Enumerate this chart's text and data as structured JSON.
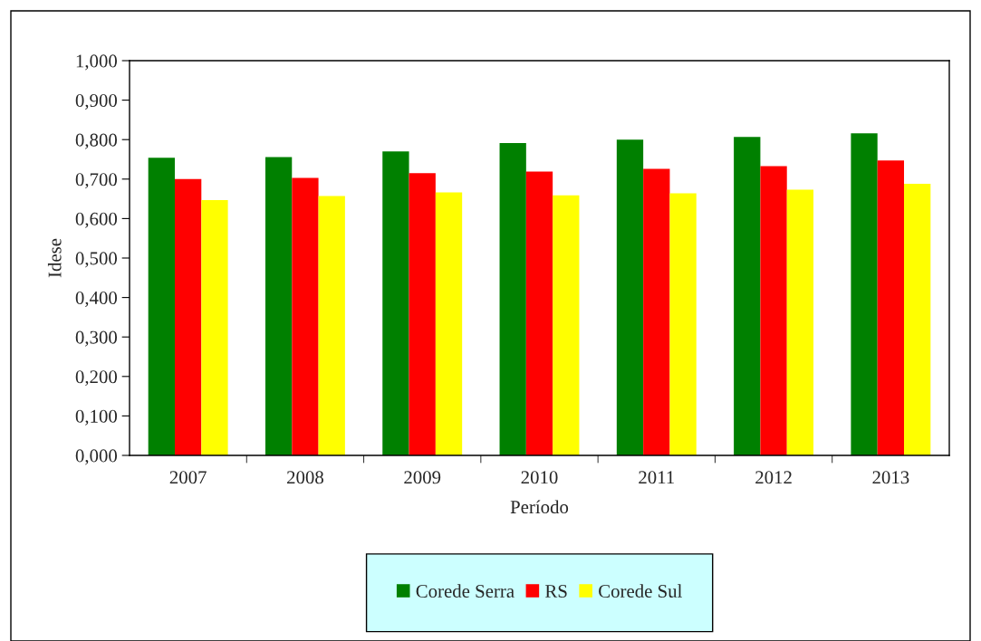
{
  "chart_data": {
    "type": "bar",
    "xlabel": "Período",
    "ylabel": "Idese",
    "categories": [
      "2007",
      "2008",
      "2009",
      "2010",
      "2011",
      "2012",
      "2013"
    ],
    "series": [
      {
        "name": "Corede Serra",
        "color": "#008000",
        "values": [
          0.754,
          0.756,
          0.77,
          0.791,
          0.8,
          0.807,
          0.816
        ]
      },
      {
        "name": "RS",
        "color": "#ff0000",
        "values": [
          0.7,
          0.703,
          0.715,
          0.719,
          0.726,
          0.733,
          0.747
        ]
      },
      {
        "name": "Corede Sul",
        "color": "#ffff00",
        "values": [
          0.647,
          0.657,
          0.666,
          0.659,
          0.664,
          0.673,
          0.688
        ]
      }
    ],
    "ylim": [
      0,
      1
    ],
    "yticks": [
      {
        "value": 0,
        "label": "0,000"
      },
      {
        "value": 0.1,
        "label": "0,100"
      },
      {
        "value": 0.2,
        "label": "0,200"
      },
      {
        "value": 0.3,
        "label": "0,300"
      },
      {
        "value": 0.4,
        "label": "0,400"
      },
      {
        "value": 0.5,
        "label": "0,500"
      },
      {
        "value": 0.6,
        "label": "0,600"
      },
      {
        "value": 0.7,
        "label": "0,700"
      },
      {
        "value": 0.8,
        "label": "0,800"
      },
      {
        "value": 0.9,
        "label": "0,900"
      },
      {
        "value": 1,
        "label": "1,000"
      }
    ],
    "grid": false,
    "legend": "bottom"
  }
}
